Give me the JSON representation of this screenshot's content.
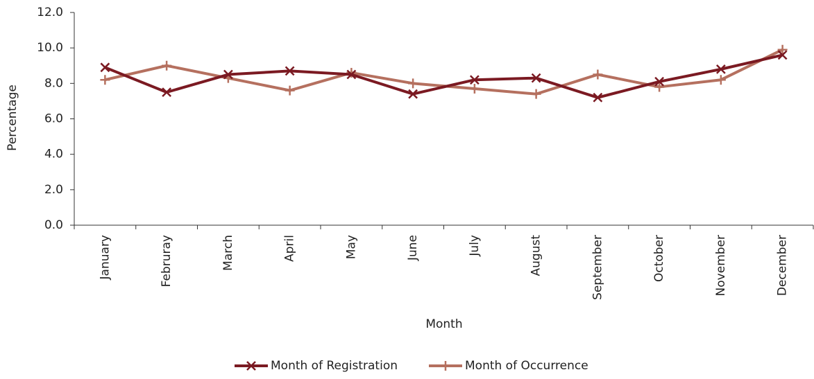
{
  "chart_data": {
    "type": "line",
    "x_label": "Month",
    "y_label": "Percentage",
    "categories": [
      "January",
      "Februray",
      "March",
      "April",
      "May",
      "June",
      "July",
      "August",
      "September",
      "October",
      "November",
      "December"
    ],
    "series": [
      {
        "name": "Month of Registration",
        "color": "#7b1a22",
        "marker": "x",
        "values": [
          8.9,
          7.5,
          8.5,
          8.7,
          8.5,
          7.4,
          8.2,
          8.3,
          7.2,
          8.1,
          8.8,
          9.6
        ]
      },
      {
        "name": "Month of Occurrence",
        "color": "#b5705f",
        "marker": "+",
        "values": [
          8.2,
          9.0,
          8.3,
          7.6,
          8.6,
          8.0,
          7.7,
          7.4,
          8.5,
          7.8,
          8.2,
          9.9
        ]
      }
    ],
    "ylim": [
      0,
      12
    ],
    "yticks": [
      {
        "value": 0,
        "label": "0.0"
      },
      {
        "value": 2,
        "label": "2.0"
      },
      {
        "value": 4,
        "label": "4.0"
      },
      {
        "value": 6,
        "label": "6.0"
      },
      {
        "value": 8,
        "label": "8.0"
      },
      {
        "value": 10,
        "label": "10.0"
      },
      {
        "value": 12,
        "label": "12.0"
      }
    ],
    "legend": "bottom"
  }
}
